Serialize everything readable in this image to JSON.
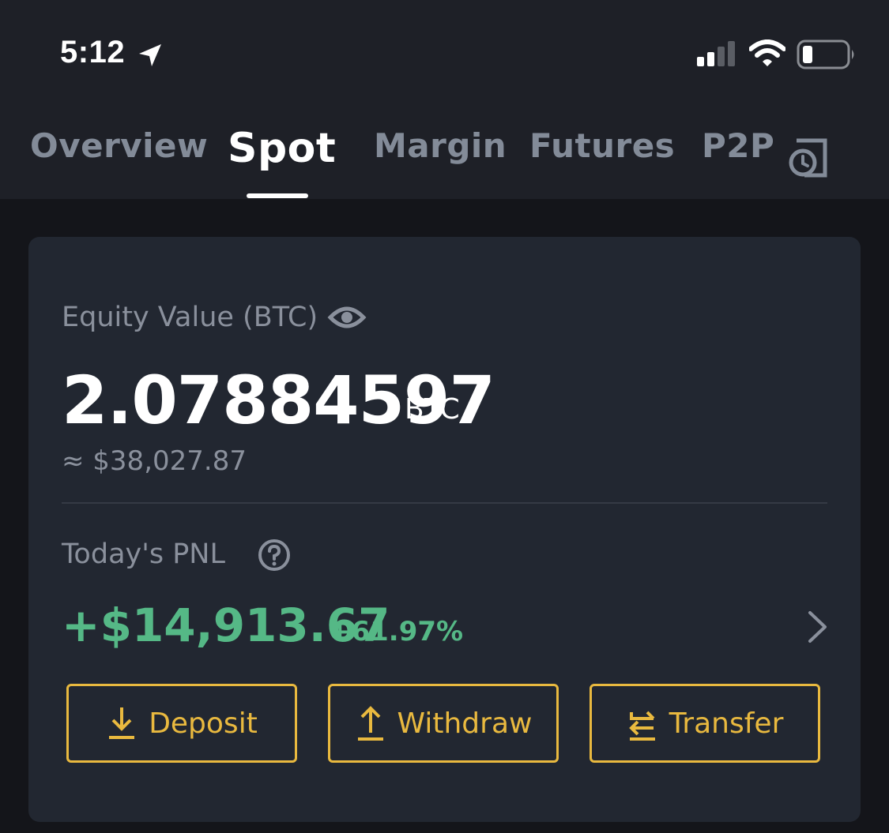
{
  "status_bar": {
    "time": "5:12"
  },
  "tabs": [
    {
      "label": "Overview"
    },
    {
      "label": "Spot"
    },
    {
      "label": "Margin"
    },
    {
      "label": "Futures"
    },
    {
      "label": "P2P"
    }
  ],
  "active_tab": "Spot",
  "card": {
    "equity_label": "Equity Value (BTC)",
    "balance": "2.07884597",
    "balance_unit": "BTC",
    "approx_usd": "≈ $38,027.87",
    "pnl_label": "Today's PNL",
    "pnl_value": "+$14,913.67",
    "pnl_percent": "+61.97%",
    "buttons": {
      "deposit": "Deposit",
      "withdraw": "Withdraw",
      "transfer": "Transfer"
    }
  },
  "colors": {
    "background": "#14151a",
    "card": "#222731",
    "accent": "#e9b93f",
    "positive": "#55b886",
    "muted_text": "#8a909c"
  },
  "icons": [
    "location-arrow-icon",
    "signal-icon",
    "wifi-icon",
    "battery-icon",
    "history-icon",
    "eye-icon",
    "help-icon",
    "chevron-right-icon",
    "download-icon",
    "upload-icon",
    "transfer-icon"
  ]
}
